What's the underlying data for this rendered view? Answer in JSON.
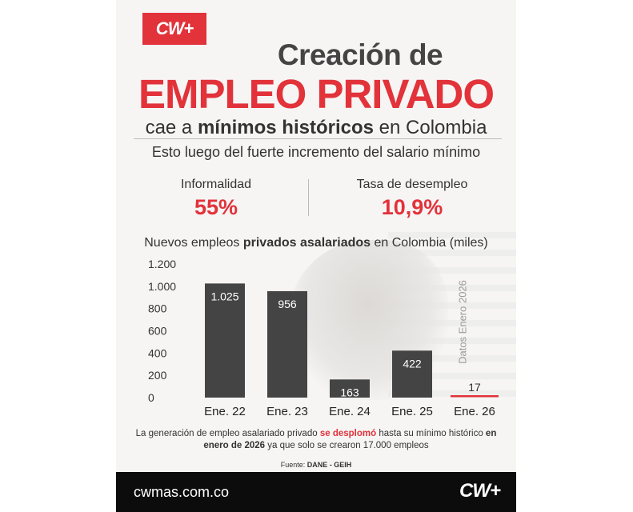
{
  "brand": {
    "logo_text": "CW+",
    "site": "cwmas.com.co",
    "accent": "#e2323a",
    "bar_color": "#444444"
  },
  "header": {
    "title_line1": "Creación de",
    "title_line2": "EMPLEO PRIVADO",
    "title_line3_pre": "cae a ",
    "title_line3_bold": "mínimos históricos",
    "title_line3_post": " en Colombia",
    "subtitle": "Esto luego del fuerte incremento del salario mínimo"
  },
  "stats": [
    {
      "label": "Informalidad",
      "value": "55%"
    },
    {
      "label": "Tasa de desempleo",
      "value": "10,9%"
    }
  ],
  "chart_heading": {
    "pre": "Nuevos empleos ",
    "bold": "privados asalariados",
    "post": " en Colombia (miles)"
  },
  "side_label": "Datos Enero 2026",
  "chart_data": {
    "type": "bar",
    "title": "Nuevos empleos privados asalariados en Colombia (miles)",
    "categories": [
      "Ene. 22",
      "Ene. 23",
      "Ene. 24",
      "Ene. 25",
      "Ene. 26"
    ],
    "values": [
      1025,
      956,
      163,
      422,
      17
    ],
    "value_labels": [
      "1.025",
      "956",
      "163",
      "422",
      "17"
    ],
    "highlight_index": 4,
    "yticks": [
      0,
      200,
      400,
      600,
      800,
      1000,
      1200
    ],
    "ytick_labels": [
      "0",
      "200",
      "400",
      "600",
      "800",
      "1.000",
      "1.200"
    ],
    "ylim": [
      0,
      1200
    ],
    "grid": false,
    "xlabel": "",
    "ylabel": ""
  },
  "note": {
    "part1": "La generación de empleo asalariado privado ",
    "red": "se desplomó",
    "part2": " hasta su mínimo histórico ",
    "bold": "en enero de 2026",
    "part3": " ya que solo se crearon 17.000 empleos"
  },
  "source": {
    "label": "Fuente: ",
    "value": "DANE - GEIH"
  }
}
